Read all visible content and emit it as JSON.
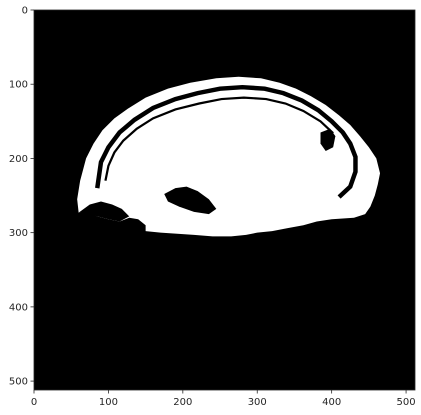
{
  "chart_data": {
    "type": "heatmap",
    "title": "",
    "xlabel": "",
    "ylabel": "",
    "image_size": [
      512,
      512
    ],
    "colormap": [
      "#000000",
      "#ffffff"
    ],
    "xlim": [
      0,
      512
    ],
    "ylim": [
      512,
      0
    ],
    "x_ticks": [
      0,
      100,
      200,
      300,
      400,
      500
    ],
    "y_ticks": [
      0,
      100,
      200,
      300,
      400,
      500
    ],
    "x_tick_labels": [
      "0",
      "100",
      "200",
      "300",
      "400",
      "500"
    ],
    "y_tick_labels": [
      "0",
      "100",
      "200",
      "300",
      "400",
      "500"
    ],
    "image_content": "binary sagittal head mask (white region on black background)"
  }
}
